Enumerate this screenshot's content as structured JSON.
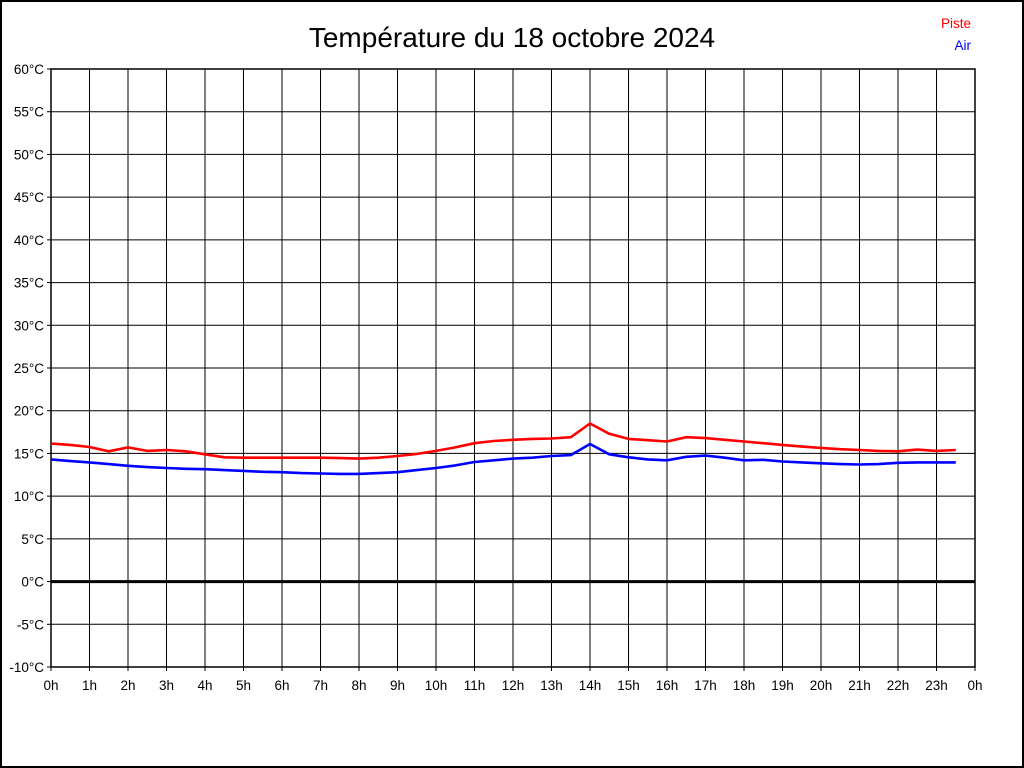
{
  "header": {
    "title": "Température du 18 octobre 2024"
  },
  "legend": {
    "items": [
      {
        "label": "Piste",
        "color": "#ff0000"
      },
      {
        "label": "Air",
        "color": "#0000ff"
      }
    ]
  },
  "colors": {
    "grid": "#000000",
    "zero_line": "#000000",
    "background": "#ffffff",
    "piste": "#ff0000",
    "air": "#0000ff"
  },
  "chart_data": {
    "type": "line",
    "title": "Température du 18 octobre 2024",
    "xlabel": "",
    "ylabel": "",
    "xlim": [
      0,
      24
    ],
    "ylim": [
      -10,
      60
    ],
    "grid": true,
    "legend_position": "top-right",
    "y_ticks": [
      60,
      55,
      50,
      45,
      40,
      35,
      30,
      25,
      20,
      15,
      10,
      5,
      0,
      -5,
      -10
    ],
    "y_tick_suffix": "°C",
    "x_tick_hours": [
      0,
      1,
      2,
      3,
      4,
      5,
      6,
      7,
      8,
      9,
      10,
      11,
      12,
      13,
      14,
      15,
      16,
      17,
      18,
      19,
      20,
      21,
      22,
      23,
      24
    ],
    "x_tick_labels": [
      "0h",
      "1h",
      "2h",
      "3h",
      "4h",
      "5h",
      "6h",
      "7h",
      "8h",
      "9h",
      "10h",
      "11h",
      "12h",
      "13h",
      "14h",
      "15h",
      "16h",
      "17h",
      "18h",
      "19h",
      "20h",
      "21h",
      "22h",
      "23h",
      "0h"
    ],
    "zero_line": {
      "value": 0,
      "stroke_width": 3
    },
    "x": [
      0,
      0.5,
      1,
      1.5,
      2,
      2.5,
      3,
      3.5,
      4,
      4.5,
      5,
      5.5,
      6,
      6.5,
      7,
      7.5,
      8,
      8.5,
      9,
      9.5,
      10,
      10.5,
      11,
      11.5,
      12,
      12.5,
      13,
      13.5,
      14,
      14.5,
      15,
      15.5,
      16,
      16.5,
      17,
      17.5,
      18,
      18.5,
      19,
      19.5,
      20,
      20.5,
      21,
      21.5,
      22,
      22.5,
      23,
      23.5
    ],
    "series": [
      {
        "name": "Piste",
        "color": "#ff0000",
        "values": [
          16.15,
          16.0,
          15.75,
          15.25,
          15.7,
          15.3,
          15.4,
          15.25,
          14.9,
          14.55,
          14.5,
          14.5,
          14.5,
          14.5,
          14.5,
          14.45,
          14.4,
          14.5,
          14.7,
          14.95,
          15.3,
          15.7,
          16.2,
          16.45,
          16.6,
          16.7,
          16.75,
          16.9,
          18.5,
          17.3,
          16.7,
          16.55,
          16.4,
          16.9,
          16.8,
          16.6,
          16.4,
          16.2,
          16.0,
          15.8,
          15.65,
          15.5,
          15.4,
          15.3,
          15.25,
          15.45,
          15.3,
          15.4
        ]
      },
      {
        "name": "Air",
        "color": "#0000ff",
        "values": [
          14.3,
          14.1,
          13.95,
          13.75,
          13.55,
          13.4,
          13.3,
          13.2,
          13.15,
          13.05,
          12.95,
          12.85,
          12.8,
          12.7,
          12.65,
          12.6,
          12.6,
          12.7,
          12.8,
          13.05,
          13.3,
          13.6,
          14.0,
          14.2,
          14.4,
          14.5,
          14.7,
          14.8,
          16.1,
          14.9,
          14.55,
          14.3,
          14.2,
          14.6,
          14.75,
          14.5,
          14.2,
          14.25,
          14.05,
          13.95,
          13.85,
          13.75,
          13.7,
          13.75,
          13.9,
          13.95,
          13.95,
          13.95
        ]
      }
    ]
  }
}
